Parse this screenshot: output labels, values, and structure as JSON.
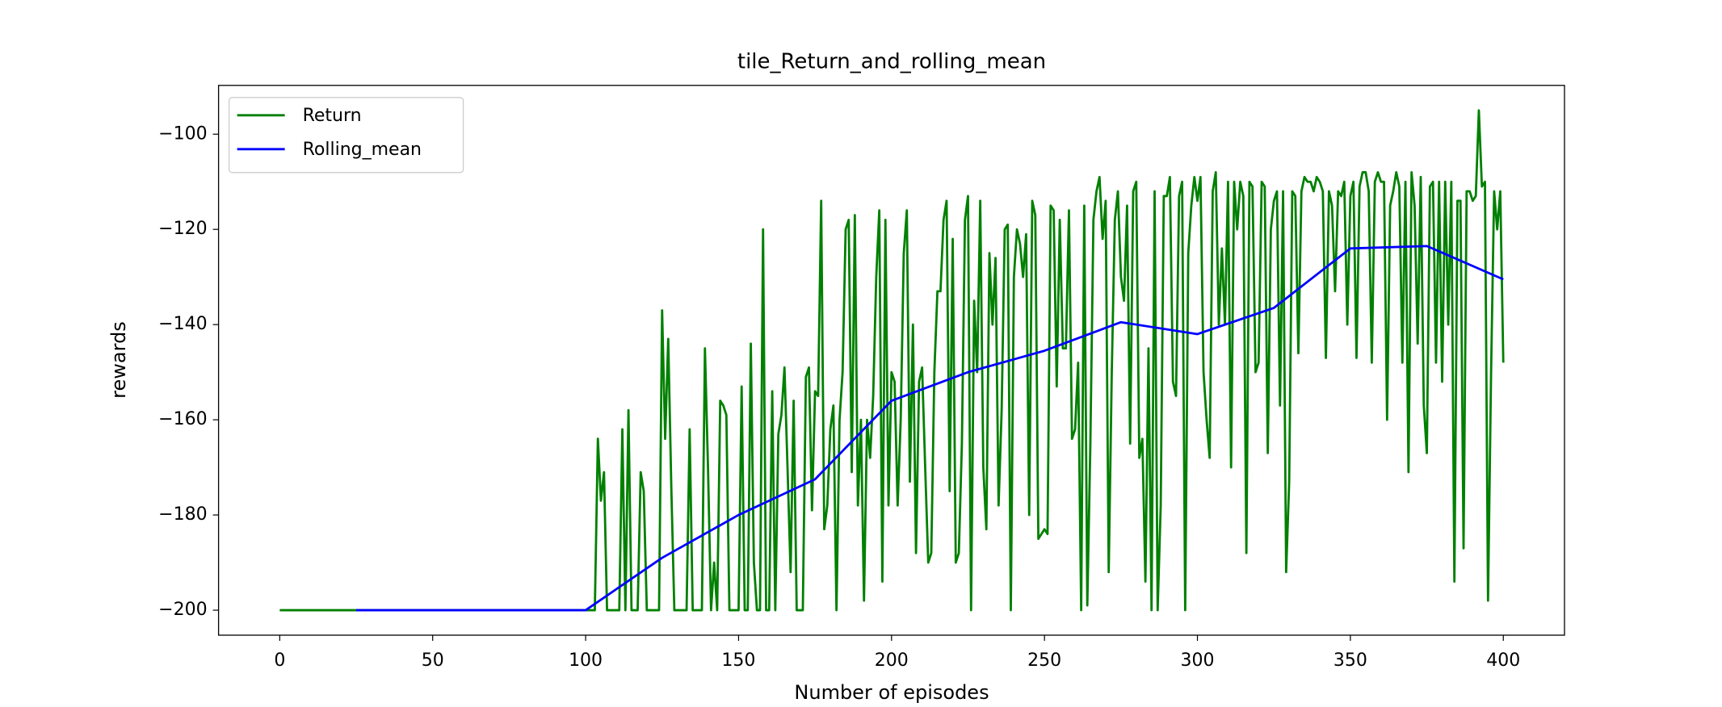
{
  "chart_data": {
    "type": "line",
    "title": "tile_Return_and_rolling_mean",
    "xlabel": "Number of episodes",
    "ylabel": "rewards",
    "xlim": [
      -20,
      420
    ],
    "ylim": [
      -205.25,
      -89.75
    ],
    "xticks": [
      0,
      50,
      100,
      150,
      200,
      250,
      300,
      350,
      400
    ],
    "yticks": [
      {
        "value": -100,
        "label": "−100"
      },
      {
        "value": -120,
        "label": "−120"
      },
      {
        "value": -140,
        "label": "−140"
      },
      {
        "value": -160,
        "label": "−160"
      },
      {
        "value": -180,
        "label": "−180"
      },
      {
        "value": -200,
        "label": "−200"
      }
    ],
    "legend": "upper left",
    "series": [
      {
        "name": "Return",
        "color": "#008000",
        "x": [
          0,
          103,
          104,
          105,
          106,
          107,
          108,
          109,
          110,
          111,
          112,
          113,
          114,
          115,
          116,
          117,
          118,
          119,
          120,
          121,
          122,
          123,
          124,
          125,
          126,
          127,
          128,
          129,
          130,
          131,
          132,
          133,
          134,
          135,
          136,
          137,
          138,
          139,
          140,
          141,
          142,
          143,
          144,
          145,
          146,
          147,
          148,
          149,
          150,
          151,
          152,
          153,
          154,
          155,
          156,
          157,
          158,
          159,
          160,
          161,
          162,
          163,
          164,
          165,
          166,
          167,
          168,
          169,
          170,
          171,
          172,
          173,
          174,
          175,
          176,
          177,
          178,
          179,
          180,
          181,
          182,
          183,
          184,
          185,
          186,
          187,
          188,
          189,
          190,
          191,
          192,
          193,
          194,
          195,
          196,
          197,
          198,
          199,
          200,
          201,
          202,
          203,
          204,
          205,
          206,
          207,
          208,
          209,
          210,
          211,
          212,
          213,
          214,
          215,
          216,
          217,
          218,
          219,
          220,
          221,
          222,
          223,
          224,
          225,
          226,
          227,
          228,
          229,
          230,
          231,
          232,
          233,
          234,
          235,
          236,
          237,
          238,
          239,
          240,
          241,
          242,
          243,
          244,
          245,
          246,
          247,
          248,
          249,
          250,
          251,
          252,
          253,
          254,
          255,
          256,
          257,
          258,
          259,
          260,
          261,
          262,
          263,
          264,
          265,
          266,
          267,
          268,
          269,
          270,
          271,
          272,
          273,
          274,
          275,
          276,
          277,
          278,
          279,
          280,
          281,
          282,
          283,
          284,
          285,
          286,
          287,
          288,
          289,
          290,
          291,
          292,
          293,
          294,
          295,
          296,
          297,
          298,
          299,
          300,
          301,
          302,
          303,
          304,
          305,
          306,
          307,
          308,
          309,
          310,
          311,
          312,
          313,
          314,
          315,
          316,
          317,
          318,
          319,
          320,
          321,
          322,
          323,
          324,
          325,
          326,
          327,
          328,
          329,
          330,
          331,
          332,
          333,
          334,
          335,
          336,
          337,
          338,
          339,
          340,
          341,
          342,
          343,
          344,
          345,
          346,
          347,
          348,
          349,
          350,
          351,
          352,
          353,
          354,
          355,
          356,
          357,
          358,
          359,
          360,
          361,
          362,
          363,
          364,
          365,
          366,
          367,
          368,
          369,
          370,
          371,
          372,
          373,
          374,
          375,
          376,
          377,
          378,
          379,
          380,
          381,
          382,
          383,
          384,
          385,
          386,
          387,
          388,
          389,
          390,
          391,
          392,
          393,
          394,
          395,
          396,
          397,
          398,
          399,
          400
        ],
        "values": [
          -200,
          -200,
          -164,
          -177,
          -171,
          -200,
          -200,
          -200,
          -200,
          -200,
          -162,
          -200,
          -158,
          -200,
          -200,
          -200,
          -171,
          -175,
          -200,
          -200,
          -200,
          -200,
          -200,
          -137,
          -164,
          -143,
          -174,
          -200,
          -200,
          -200,
          -200,
          -200,
          -162,
          -200,
          -200,
          -200,
          -200,
          -145,
          -170,
          -200,
          -190,
          -200,
          -156,
          -157,
          -159,
          -200,
          -200,
          -200,
          -200,
          -153,
          -200,
          -200,
          -144,
          -190,
          -200,
          -200,
          -120,
          -200,
          -200,
          -154,
          -200,
          -163,
          -159,
          -149,
          -170,
          -192,
          -156,
          -200,
          -200,
          -200,
          -151,
          -149,
          -179,
          -154,
          -155,
          -114,
          -183,
          -178,
          -162,
          -157,
          -200,
          -160,
          -150,
          -120,
          -118,
          -171,
          -117,
          -178,
          -160,
          -198,
          -160,
          -168,
          -155,
          -130,
          -116,
          -194,
          -118,
          -178,
          -150,
          -152,
          -178,
          -160,
          -125,
          -116,
          -173,
          -140,
          -188,
          -152,
          -149,
          -170,
          -190,
          -188,
          -150,
          -133,
          -133,
          -118,
          -114,
          -175,
          -122,
          -190,
          -188,
          -165,
          -118,
          -113,
          -200,
          -135,
          -150,
          -114,
          -170,
          -183,
          -125,
          -140,
          -126,
          -178,
          -158,
          -120,
          -119,
          -200,
          -130,
          -120,
          -123,
          -130,
          -121,
          -180,
          -114,
          -117,
          -185,
          -184,
          -183,
          -184,
          -115,
          -116,
          -153,
          -118,
          -145,
          -145,
          -116,
          -164,
          -162,
          -148,
          -200,
          -115,
          -199,
          -165,
          -118,
          -112,
          -109,
          -122,
          -114,
          -192,
          -150,
          -118,
          -112,
          -130,
          -135,
          -115,
          -165,
          -112,
          -110,
          -168,
          -164,
          -194,
          -145,
          -200,
          -112,
          -200,
          -178,
          -113,
          -113,
          -109,
          -152,
          -155,
          -113,
          -110,
          -200,
          -125,
          -115,
          -109,
          -114,
          -109,
          -150,
          -160,
          -168,
          -112,
          -108,
          -140,
          -124,
          -140,
          -110,
          -170,
          -110,
          -120,
          -110,
          -113,
          -188,
          -110,
          -111,
          -150,
          -148,
          -110,
          -111,
          -167,
          -120,
          -114,
          -112,
          -157,
          -112,
          -192,
          -173,
          -112,
          -113,
          -146,
          -112,
          -109,
          -110,
          -110,
          -112,
          -109,
          -110,
          -112,
          -147,
          -112,
          -115,
          -133,
          -112,
          -113,
          -110,
          -140,
          -113,
          -110,
          -147,
          -111,
          -108,
          -108,
          -112,
          -148,
          -110,
          -108,
          -110,
          -110,
          -160,
          -115,
          -112,
          -108,
          -111,
          -148,
          -110,
          -171,
          -108,
          -115,
          -144,
          -109,
          -157,
          -167,
          -111,
          -110,
          -148,
          -110,
          -152,
          -110,
          -140,
          -110,
          -194,
          -114,
          -114,
          -187,
          -112,
          -112,
          -114,
          -113,
          -95,
          -111,
          -110,
          -198,
          -150,
          -112,
          -120,
          -112,
          -148
        ]
      },
      {
        "name": "Rolling_mean",
        "color": "#0000ff",
        "x": [
          25,
          50,
          75,
          100,
          125,
          150,
          175,
          200,
          225,
          250,
          275,
          300,
          325,
          350,
          375,
          400
        ],
        "values": [
          -200,
          -200,
          -200,
          -200,
          -189,
          -180,
          -172.5,
          -156,
          -150,
          -145.5,
          -139.5,
          -142,
          -136.5,
          -124,
          -123.5,
          -130.5
        ]
      }
    ]
  }
}
